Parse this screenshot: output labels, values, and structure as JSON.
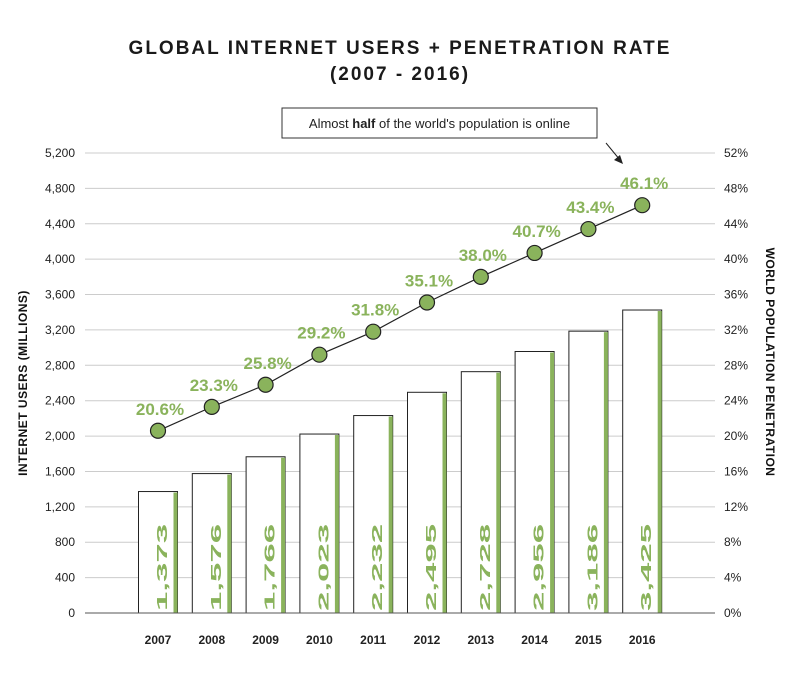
{
  "chart_data": {
    "type": "bar",
    "title": "GLOBAL INTERNET USERS + PENETRATION RATE",
    "subtitle": "(2007 - 2016)",
    "categories": [
      "2007",
      "2008",
      "2009",
      "2010",
      "2011",
      "2012",
      "2013",
      "2014",
      "2015",
      "2016"
    ],
    "series": [
      {
        "name": "INTERNET USERS (MILLIONS)",
        "type": "bar",
        "axis": "left",
        "values": [
          1373,
          1576,
          1766,
          2023,
          2232,
          2495,
          2728,
          2956,
          3186,
          3425
        ],
        "labels": [
          "1,373",
          "1,576",
          "1,766",
          "2,023",
          "2,232",
          "2,495",
          "2,728",
          "2,956",
          "3,186",
          "3,425"
        ]
      },
      {
        "name": "WORLD POPULATION PENETRATION",
        "type": "line",
        "axis": "right",
        "values": [
          20.6,
          23.3,
          25.8,
          29.2,
          31.8,
          35.1,
          38.0,
          40.7,
          43.4,
          46.1
        ],
        "labels": [
          "20.6%",
          "23.3%",
          "25.8%",
          "29.2%",
          "31.8%",
          "35.1%",
          "38.0%",
          "40.7%",
          "43.4%",
          "46.1%"
        ]
      }
    ],
    "ylabel": "INTERNET USERS (MILLIONS)",
    "ylabel_right": "WORLD POPULATION PENETRATION",
    "ylim": [
      0,
      5200
    ],
    "ylim_right": [
      0,
      52
    ],
    "yticks": [
      "0",
      "400",
      "800",
      "1,200",
      "1,600",
      "2,000",
      "2,400",
      "2,800",
      "3,200",
      "3,600",
      "4,000",
      "4,400",
      "4,800",
      "5,200"
    ],
    "yticks_right": [
      "0%",
      "4%",
      "8%",
      "12%",
      "16%",
      "20%",
      "24%",
      "28%",
      "32%",
      "36%",
      "40%",
      "44%",
      "48%",
      "52%"
    ],
    "grid": true,
    "annotation": {
      "before": "Almost ",
      "bold": "half",
      "after": " of the world's population is online"
    },
    "colors": {
      "accent": "#8ab35c",
      "marker": "#8ab35c",
      "grid": "#cccccc",
      "bar_fill": "#ffffff",
      "bar_edge": "#222222"
    }
  }
}
